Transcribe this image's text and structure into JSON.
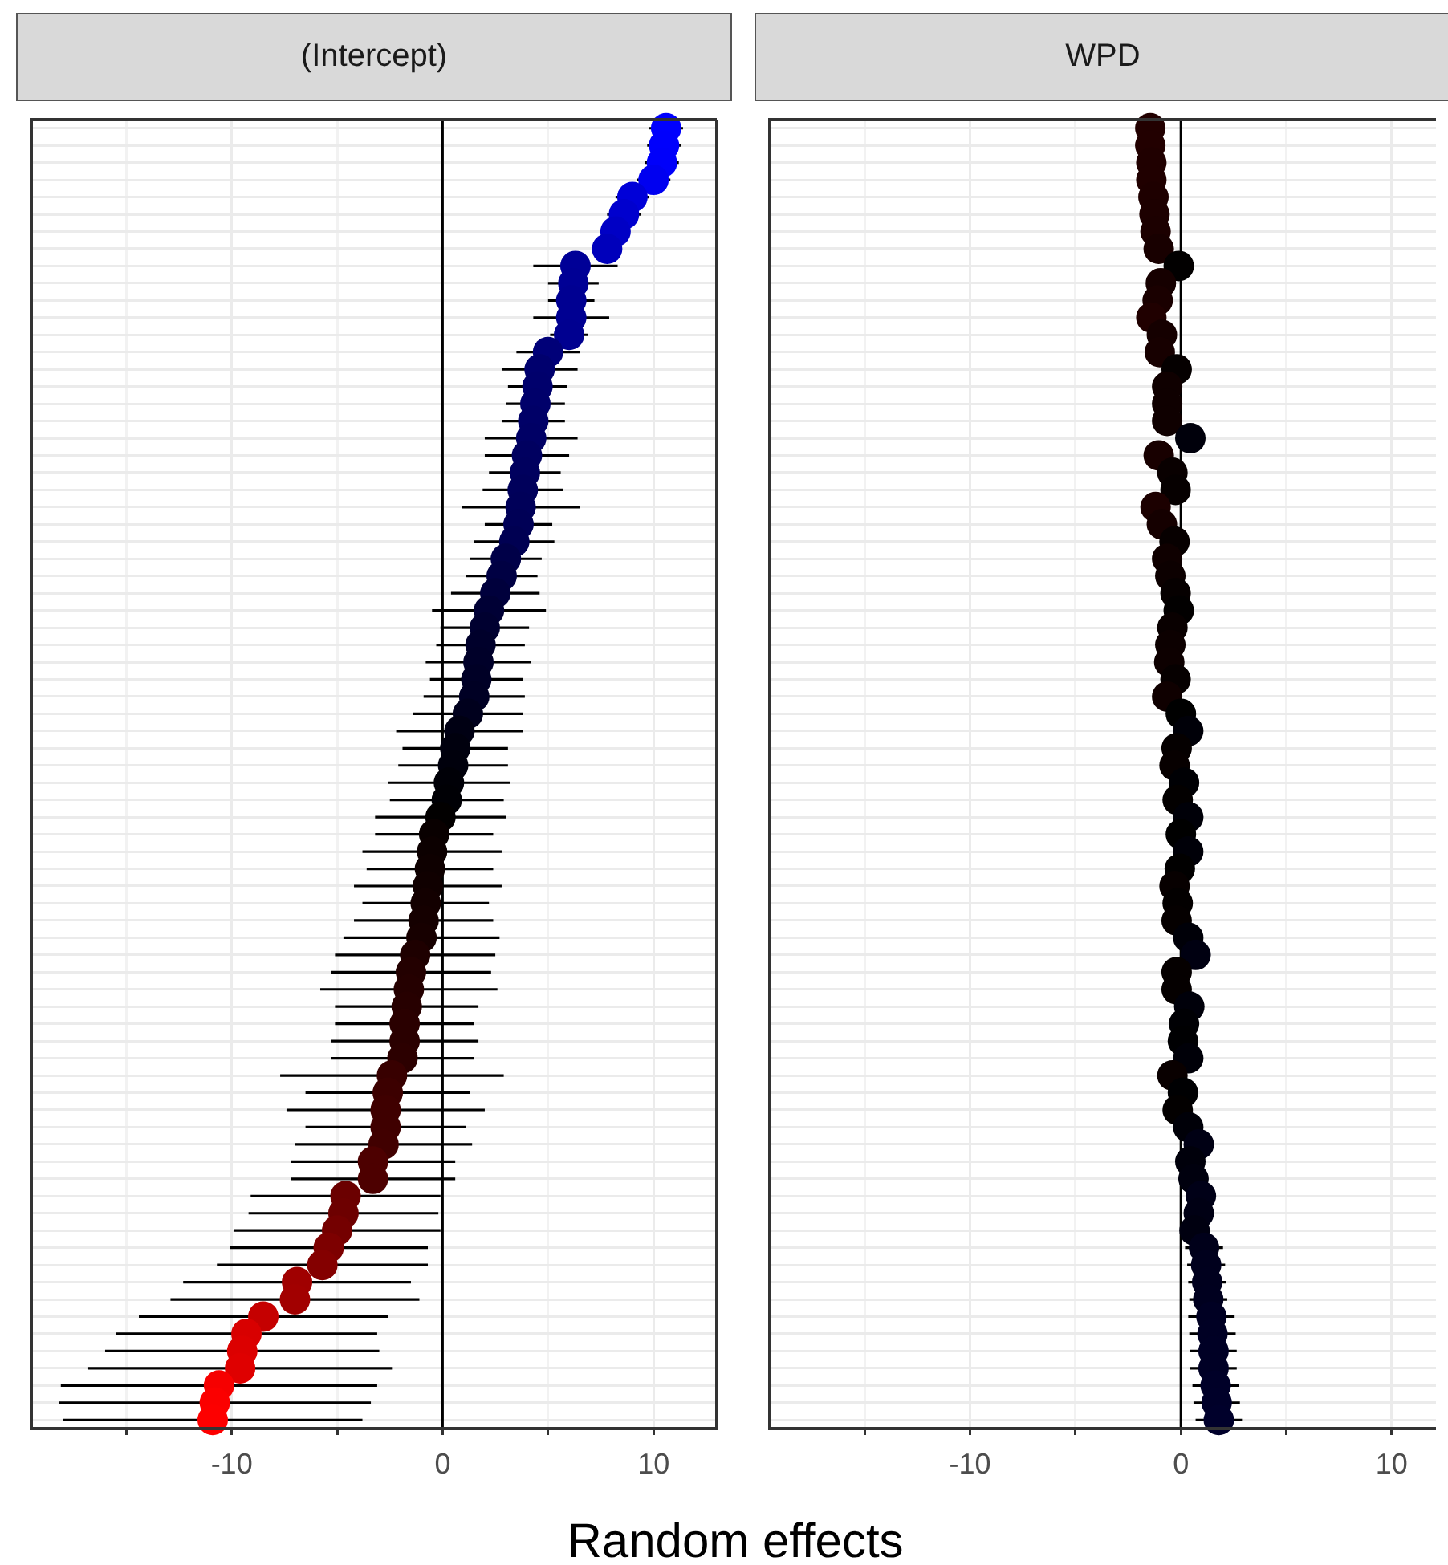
{
  "chart_data": [
    {
      "type": "scatter",
      "title": "(Intercept)",
      "orientation": "horizontal",
      "marker": "circle",
      "grid": true,
      "tick_labels": "x",
      "xlabel": "Random effects",
      "categories": [
        null,
        null,
        null,
        null,
        null,
        null,
        null,
        null,
        null,
        null,
        null,
        null,
        null,
        null,
        null,
        null,
        null,
        null,
        null,
        null,
        null,
        null,
        null,
        null,
        null,
        null,
        null,
        null,
        null,
        null,
        null,
        null,
        null,
        null,
        null,
        null,
        null,
        null,
        null,
        null,
        null,
        null,
        null,
        null,
        null,
        null,
        null,
        null,
        null,
        null,
        null,
        null,
        null,
        null,
        null,
        null,
        null,
        null,
        null,
        null,
        null,
        null,
        null,
        null,
        null,
        null,
        null,
        null,
        null,
        null,
        null,
        null,
        null,
        null,
        null,
        null
      ],
      "values": [
        10.6,
        10.5,
        10.4,
        10.0,
        9.0,
        8.6,
        8.2,
        7.8,
        6.3,
        6.2,
        6.1,
        6.1,
        6.0,
        5.0,
        4.6,
        4.5,
        4.4,
        4.3,
        4.2,
        4.0,
        3.9,
        3.8,
        3.7,
        3.6,
        3.4,
        3.0,
        2.8,
        2.5,
        2.2,
        2.0,
        1.8,
        1.7,
        1.6,
        1.5,
        1.2,
        0.8,
        0.6,
        0.5,
        0.3,
        0.2,
        -0.1,
        -0.4,
        -0.5,
        -0.6,
        -0.7,
        -0.8,
        -0.9,
        -1.0,
        -1.3,
        -1.5,
        -1.6,
        -1.7,
        -1.8,
        -1.8,
        -1.9,
        -2.4,
        -2.6,
        -2.7,
        -2.7,
        -2.8,
        -3.3,
        -3.3,
        -4.6,
        -4.7,
        -5.0,
        -5.4,
        -5.7,
        -6.9,
        -7.0,
        -8.5,
        -9.3,
        -9.5,
        -9.6,
        -10.6,
        -10.8,
        -10.9
      ],
      "errors": [
        0.8,
        0.8,
        0.8,
        0.8,
        0.8,
        0.8,
        null,
        null,
        2.0,
        1.2,
        1.1,
        1.8,
        0.9,
        1.5,
        1.8,
        1.4,
        1.4,
        1.5,
        2.2,
        2.0,
        1.7,
        1.9,
        2.8,
        1.6,
        1.9,
        1.7,
        1.7,
        2.1,
        2.7,
        2.1,
        2.1,
        2.5,
        2.2,
        2.4,
        2.6,
        3.0,
        2.5,
        2.6,
        2.9,
        2.7,
        3.1,
        2.8,
        3.3,
        3.0,
        3.5,
        3.0,
        3.3,
        3.7,
        3.8,
        3.8,
        4.2,
        3.4,
        3.3,
        3.5,
        3.4,
        5.3,
        3.9,
        4.7,
        3.8,
        4.2,
        3.9,
        3.9,
        4.5,
        4.5,
        4.9,
        4.7,
        5.0,
        5.4,
        5.9,
        5.9,
        6.2,
        6.5,
        7.2,
        7.5,
        7.4,
        7.1
      ],
      "colors": [
        "#0000fe",
        "#0000fc",
        "#0000fa",
        "#0000f0",
        "#0000d8",
        "#0000ce",
        "#0000c5",
        "#0000bb",
        "#000097",
        "#000095",
        "#000092",
        "#000092",
        "#000090",
        "#000078",
        "#00006e",
        "#00006c",
        "#00006a",
        "#000067",
        "#000065",
        "#000060",
        "#00005e",
        "#00005b",
        "#000059",
        "#000056",
        "#000052",
        "#000048",
        "#000043",
        "#00003c",
        "#000035",
        "#000030",
        "#00002b",
        "#000029",
        "#000026",
        "#000024",
        "#00001d",
        "#000013",
        "#00000e",
        "#00000c",
        "#000007",
        "#000005",
        "#020000",
        "#090000",
        "#0c0000",
        "#0e0000",
        "#100000",
        "#130000",
        "#150000",
        "#170000",
        "#1e0000",
        "#230000",
        "#250000",
        "#270000",
        "#2a0000",
        "#2a0000",
        "#2c0000",
        "#380000",
        "#3c0000",
        "#3f0000",
        "#3f0000",
        "#410000",
        "#4d0000",
        "#4d0000",
        "#6b0000",
        "#6d0000",
        "#740000",
        "#7d0000",
        "#840000",
        "#a00000",
        "#a20000",
        "#c50000",
        "#d80000",
        "#dc0000",
        "#df0000",
        "#f60000",
        "#fb0000",
        "#fd0000"
      ],
      "xlim": [
        -19.5,
        13
      ],
      "xticks": [
        {
          "value": -15,
          "label": null
        },
        -10,
        {
          "value": -5,
          "label": null
        },
        0,
        {
          "value": 5,
          "label": null
        },
        10
      ],
      "ref_lines": [
        {
          "axis": "x",
          "value": 0,
          "color": "#000000"
        }
      ]
    },
    {
      "type": "scatter",
      "title": "WPD",
      "orientation": "horizontal",
      "marker": "circle",
      "grid": true,
      "tick_labels": "x",
      "categories": [
        null,
        null,
        null,
        null,
        null,
        null,
        null,
        null,
        null,
        null,
        null,
        null,
        null,
        null,
        null,
        null,
        null,
        null,
        null,
        null,
        null,
        null,
        null,
        null,
        null,
        null,
        null,
        null,
        null,
        null,
        null,
        null,
        null,
        null,
        null,
        null,
        null,
        null,
        null,
        null,
        null,
        null,
        null,
        null,
        null,
        null,
        null,
        null,
        null,
        null,
        null,
        null,
        null,
        null,
        null,
        null,
        null,
        null,
        null,
        null,
        null,
        null,
        null,
        null,
        null,
        null,
        null,
        null,
        null,
        null,
        null,
        null,
        null,
        null,
        null,
        null
      ],
      "values": [
        -1.45,
        -1.45,
        -1.4,
        -1.4,
        -1.3,
        -1.25,
        -1.2,
        -1.05,
        -0.1,
        -0.95,
        -1.1,
        -1.4,
        -0.9,
        -1.0,
        -0.2,
        -0.65,
        -0.65,
        -0.65,
        0.45,
        -1.05,
        -0.4,
        -0.25,
        -1.2,
        -0.9,
        -0.3,
        -0.65,
        -0.5,
        -0.25,
        -0.1,
        -0.4,
        -0.5,
        -0.55,
        -0.25,
        -0.65,
        0.0,
        0.35,
        -0.2,
        -0.3,
        0.15,
        -0.15,
        0.35,
        0.0,
        0.35,
        -0.05,
        -0.3,
        -0.15,
        -0.2,
        0.35,
        0.7,
        -0.2,
        -0.2,
        0.4,
        0.15,
        0.1,
        0.35,
        -0.4,
        0.1,
        -0.15,
        0.35,
        0.85,
        0.45,
        0.6,
        0.95,
        0.85,
        0.65,
        1.1,
        1.2,
        1.25,
        1.3,
        1.45,
        1.5,
        1.55,
        1.55,
        1.65,
        1.7,
        1.8
      ],
      "errors": [
        null,
        null,
        null,
        null,
        null,
        null,
        null,
        null,
        null,
        null,
        null,
        null,
        null,
        null,
        null,
        null,
        null,
        null,
        null,
        null,
        null,
        null,
        null,
        null,
        null,
        null,
        null,
        null,
        null,
        null,
        null,
        null,
        null,
        null,
        null,
        null,
        null,
        null,
        null,
        null,
        null,
        null,
        null,
        null,
        null,
        null,
        null,
        null,
        null,
        null,
        null,
        null,
        null,
        null,
        null,
        null,
        null,
        null,
        null,
        null,
        null,
        null,
        null,
        null,
        null,
        0.9,
        0.9,
        0.9,
        0.9,
        1.1,
        1.1,
        1.1,
        1.1,
        1.1,
        1.1,
        1.1
      ],
      "colors": [
        "#220000",
        "#220000",
        "#200000",
        "#200000",
        "#1e0000",
        "#1d0000",
        "#1c0000",
        "#180000",
        "#020000",
        "#160000",
        "#1a0000",
        "#200000",
        "#150000",
        "#170000",
        "#050000",
        "#0f0000",
        "#0f0000",
        "#0f0000",
        "#00000b",
        "#180000",
        "#090000",
        "#060000",
        "#1c0000",
        "#150000",
        "#070000",
        "#0f0000",
        "#0c0000",
        "#060000",
        "#020000",
        "#090000",
        "#0c0000",
        "#0d0000",
        "#060000",
        "#0f0000",
        "#000000",
        "#000008",
        "#050000",
        "#070000",
        "#000004",
        "#030000",
        "#000008",
        "#000000",
        "#000008",
        "#010000",
        "#070000",
        "#030000",
        "#050000",
        "#000008",
        "#000011",
        "#050000",
        "#050000",
        "#00000a",
        "#000004",
        "#000002",
        "#000008",
        "#090000",
        "#000002",
        "#030000",
        "#000008",
        "#000014",
        "#00000b",
        "#00000e",
        "#000017",
        "#000014",
        "#000010",
        "#00001a",
        "#00001d",
        "#00001e",
        "#00001f",
        "#000023",
        "#000024",
        "#000025",
        "#000025",
        "#000028",
        "#000029",
        "#00002b"
      ],
      "xlim": [
        -19.5,
        12.1
      ],
      "xticks": [
        {
          "value": -15,
          "label": null
        },
        -10,
        {
          "value": -5,
          "label": null
        },
        0,
        {
          "value": 5,
          "label": null
        },
        10
      ],
      "ref_lines": [
        {
          "axis": "x",
          "value": 0,
          "color": "#000000"
        }
      ]
    }
  ]
}
